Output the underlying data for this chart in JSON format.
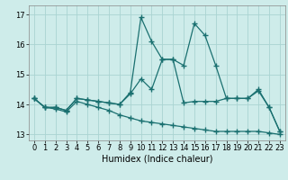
{
  "title": "",
  "xlabel": "Humidex (Indice chaleur)",
  "background_color": "#ceecea",
  "line_color": "#1a7070",
  "grid_color": "#aad4d2",
  "ylim": [
    12.8,
    17.3
  ],
  "xlim": [
    -0.5,
    23.5
  ],
  "yticks": [
    13,
    14,
    15,
    16,
    17
  ],
  "xticks": [
    0,
    1,
    2,
    3,
    4,
    5,
    6,
    7,
    8,
    9,
    10,
    11,
    12,
    13,
    14,
    15,
    16,
    17,
    18,
    19,
    20,
    21,
    22,
    23
  ],
  "line_spike_x": [
    0,
    1,
    2,
    3,
    4,
    5,
    6,
    7,
    8,
    9,
    10,
    11,
    12,
    13,
    14,
    15,
    16,
    17,
    18,
    19,
    20,
    21,
    22,
    23
  ],
  "line_spike_y": [
    14.2,
    13.9,
    13.9,
    13.8,
    14.2,
    14.15,
    14.1,
    14.05,
    14.0,
    14.4,
    16.9,
    16.1,
    15.5,
    15.5,
    15.3,
    16.7,
    16.3,
    15.3,
    14.2,
    14.2,
    14.2,
    14.5,
    13.9,
    13.1
  ],
  "line_mid_x": [
    0,
    1,
    2,
    3,
    4,
    5,
    6,
    7,
    8,
    9,
    10,
    11,
    12,
    13,
    14,
    15,
    16,
    17,
    18,
    19,
    20,
    21,
    22,
    23
  ],
  "line_mid_y": [
    14.2,
    13.9,
    13.9,
    13.8,
    14.2,
    14.15,
    14.1,
    14.05,
    14.0,
    14.35,
    14.85,
    14.5,
    15.5,
    15.5,
    14.05,
    14.1,
    14.1,
    14.1,
    14.2,
    14.2,
    14.2,
    14.45,
    13.9,
    13.1
  ],
  "line_low_x": [
    0,
    1,
    2,
    3,
    4,
    5,
    6,
    7,
    8,
    9,
    10,
    11,
    12,
    13,
    14,
    15,
    16,
    17,
    18,
    19,
    20,
    21,
    22,
    23
  ],
  "line_low_y": [
    14.2,
    13.9,
    13.85,
    13.75,
    14.1,
    14.0,
    13.9,
    13.8,
    13.65,
    13.55,
    13.45,
    13.4,
    13.35,
    13.3,
    13.25,
    13.2,
    13.15,
    13.1,
    13.1,
    13.1,
    13.1,
    13.1,
    13.05,
    13.0
  ],
  "marker": "+",
  "markersize": 4,
  "linewidth": 0.9,
  "xlabel_fontsize": 7,
  "tick_fontsize": 6
}
